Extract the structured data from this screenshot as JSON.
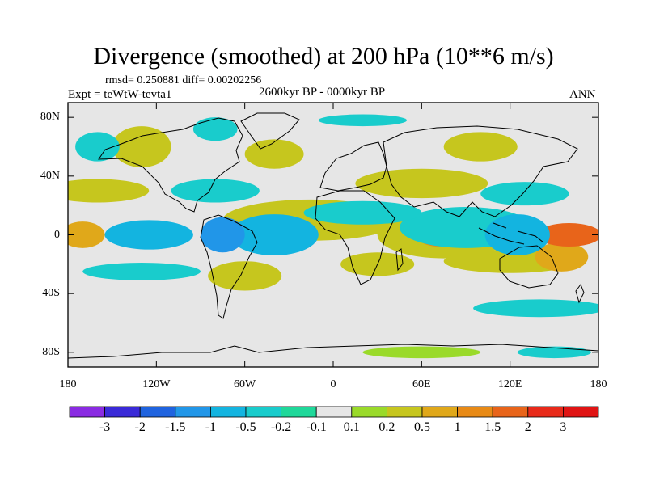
{
  "title": "Divergence (smoothed) at 200 hPa (10**6 m/s)",
  "stats": "rmsd= 0.250881 diff= 0.00202256",
  "experiment": "Expt = teWtW-tevta1",
  "period": "2600kyr BP - 0000kyr BP",
  "season": "ANN",
  "map": {
    "lon_range": [
      -180,
      180
    ],
    "lat_range": [
      -90,
      90
    ],
    "y_ticks": [
      "80N",
      "40N",
      "0",
      "40S",
      "80S"
    ],
    "y_tick_lats": [
      80,
      40,
      0,
      -40,
      -80
    ],
    "x_ticks": [
      "180",
      "120W",
      "60W",
      "0",
      "60E",
      "120E",
      "180"
    ],
    "x_tick_lons": [
      -180,
      -120,
      -60,
      0,
      60,
      120,
      180
    ],
    "background_color": "#e6e6e6"
  },
  "colorbar": {
    "labels": [
      "-3",
      "-2",
      "-1.5",
      "-1",
      "-0.5",
      "-0.2",
      "-0.1",
      "0.1",
      "0.2",
      "0.5",
      "1",
      "1.5",
      "2",
      "3"
    ],
    "colors": [
      "#8a2be2",
      "#3a2ad8",
      "#1f63df",
      "#2196e8",
      "#13b4e0",
      "#19cccc",
      "#1fd89a",
      "#e6e6e6",
      "#9ada2a",
      "#c6c61e",
      "#e0a81a",
      "#e88a16",
      "#e8641a",
      "#e82a1a",
      "#e01414"
    ]
  },
  "field": {
    "positive": [
      {
        "lon": 160,
        "lat": 0,
        "rlon": 22,
        "rlat": 8,
        "level": 5
      },
      {
        "lon": 72,
        "lat": -2,
        "rlon": 14,
        "rlat": 6,
        "level": 4
      },
      {
        "lon": 75,
        "lat": 0,
        "rlon": 45,
        "rlat": 16,
        "level": 2
      },
      {
        "lon": -170,
        "lat": 0,
        "rlon": 15,
        "rlat": 9,
        "level": 3
      },
      {
        "lon": -160,
        "lat": 30,
        "rlon": 35,
        "rlat": 8,
        "level": 2
      },
      {
        "lon": -15,
        "lat": 10,
        "rlon": 60,
        "rlat": 14,
        "level": 2
      },
      {
        "lon": -60,
        "lat": -28,
        "rlon": 25,
        "rlat": 10,
        "level": 2
      },
      {
        "lon": 30,
        "lat": -20,
        "rlon": 25,
        "rlat": 8,
        "level": 2
      },
      {
        "lon": 120,
        "lat": -18,
        "rlon": 45,
        "rlat": 8,
        "level": 2
      },
      {
        "lon": 60,
        "lat": 35,
        "rlon": 45,
        "rlat": 10,
        "level": 2
      },
      {
        "lon": -130,
        "lat": 60,
        "rlon": 20,
        "rlat": 14,
        "level": 2
      },
      {
        "lon": -40,
        "lat": 55,
        "rlon": 20,
        "rlat": 10,
        "level": 2
      },
      {
        "lon": 100,
        "lat": 60,
        "rlon": 25,
        "rlat": 10,
        "level": 2
      },
      {
        "lon": 60,
        "lat": -80,
        "rlon": 40,
        "rlat": 4,
        "level": 1
      },
      {
        "lon": 155,
        "lat": -15,
        "rlon": 18,
        "rlat": 10,
        "level": 3
      }
    ],
    "negative": [
      {
        "lon": -40,
        "lat": 0,
        "rlon": 30,
        "rlat": 14,
        "level": 3
      },
      {
        "lon": -125,
        "lat": 0,
        "rlon": 30,
        "rlat": 10,
        "level": 3
      },
      {
        "lon": -75,
        "lat": 0,
        "rlon": 15,
        "rlat": 12,
        "level": 4
      },
      {
        "lon": 90,
        "lat": 5,
        "rlon": 45,
        "rlat": 14,
        "level": 2
      },
      {
        "lon": 125,
        "lat": 0,
        "rlon": 22,
        "rlat": 14,
        "level": 3
      },
      {
        "lon": -80,
        "lat": 30,
        "rlon": 30,
        "rlat": 8,
        "level": 2
      },
      {
        "lon": 20,
        "lat": 15,
        "rlon": 40,
        "rlat": 8,
        "level": 2
      },
      {
        "lon": 130,
        "lat": 28,
        "rlon": 30,
        "rlat": 8,
        "level": 2
      },
      {
        "lon": -130,
        "lat": -25,
        "rlon": 40,
        "rlat": 6,
        "level": 2
      },
      {
        "lon": -80,
        "lat": 72,
        "rlon": 15,
        "rlat": 8,
        "level": 2
      },
      {
        "lon": 20,
        "lat": 78,
        "rlon": 30,
        "rlat": 4,
        "level": 2
      },
      {
        "lon": 140,
        "lat": -50,
        "rlon": 45,
        "rlat": 6,
        "level": 2
      },
      {
        "lon": 150,
        "lat": -80,
        "rlon": 25,
        "rlat": 4,
        "level": 2
      },
      {
        "lon": -160,
        "lat": 60,
        "rlon": 15,
        "rlat": 10,
        "level": 2
      }
    ]
  }
}
